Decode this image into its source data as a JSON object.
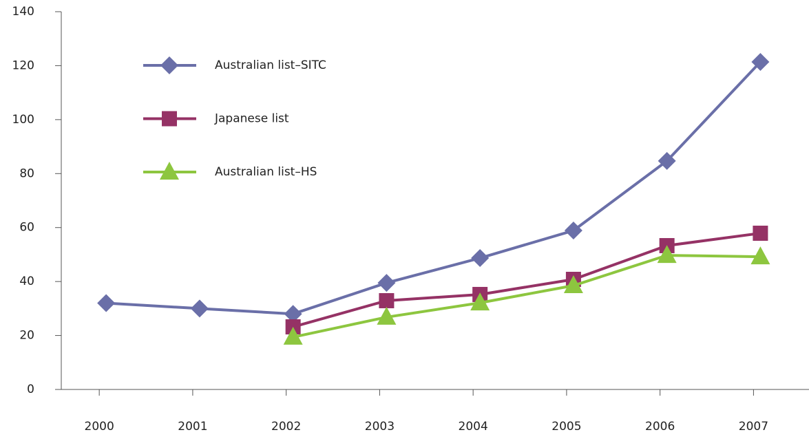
{
  "chart_data": {
    "type": "line",
    "categories": [
      "2000",
      "2001",
      "2002",
      "2003",
      "2004",
      "2005",
      "2006",
      "2007"
    ],
    "series": [
      {
        "name": "Australian list–SITC",
        "color": "#6a6fa8",
        "marker": "diamond",
        "values": [
          32,
          30,
          28,
          39.5,
          48.7,
          58.9,
          84.7,
          121.4
        ]
      },
      {
        "name": "Japanese list",
        "color": "#953265",
        "marker": "square",
        "values": [
          null,
          null,
          23.2,
          32.9,
          35.2,
          40.8,
          53.3,
          57.9
        ]
      },
      {
        "name": "Australian list–HS",
        "color": "#8dc63f",
        "marker": "triangle",
        "values": [
          null,
          null,
          19.4,
          26.8,
          32.1,
          38.5,
          49.7,
          49.2
        ]
      }
    ],
    "ylim": [
      0,
      140
    ],
    "yticks": [
      0,
      20,
      40,
      60,
      80,
      100,
      120,
      140
    ],
    "grid": false,
    "legend": "top-left"
  }
}
